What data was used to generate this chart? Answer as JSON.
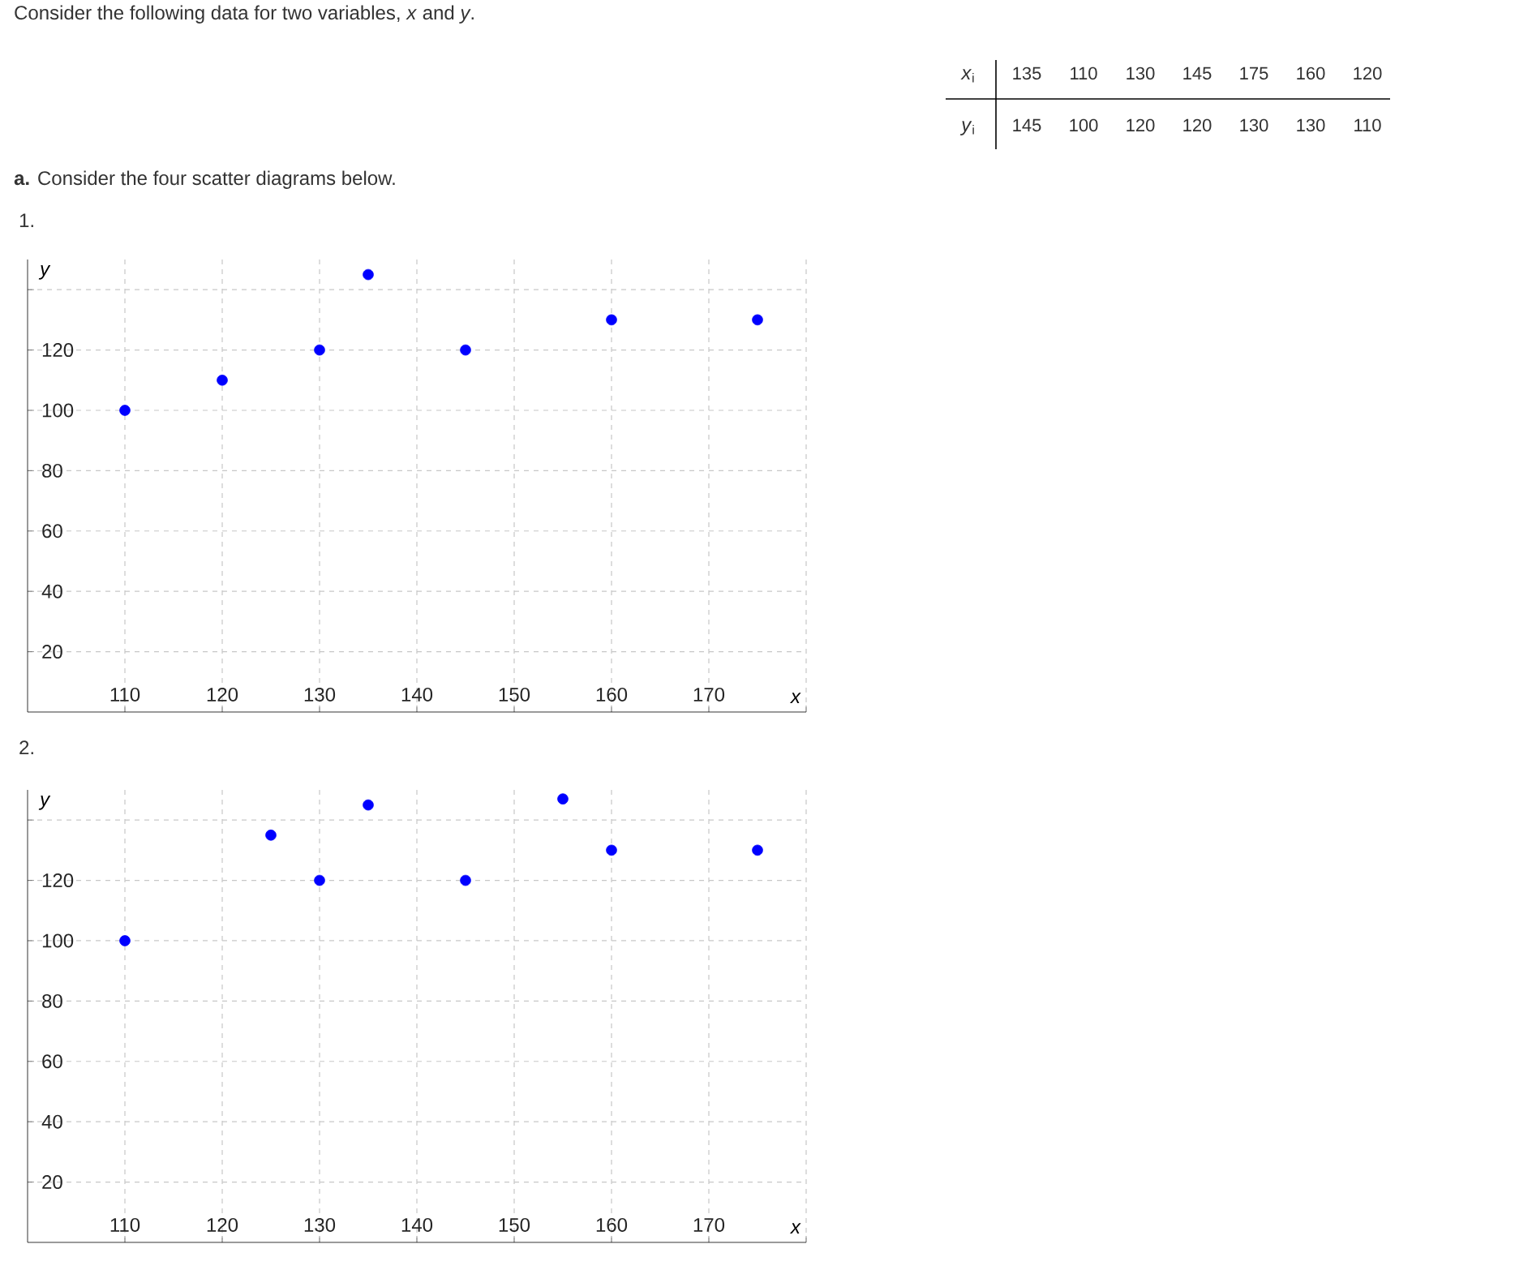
{
  "chart_data": [
    {
      "type": "other",
      "annotations": [
        "Consider the following data for two variables, *x* and *y*.",
        "*x*$_{i}$",
        "135",
        "110",
        "130",
        "145",
        "175",
        "160",
        "120",
        "*y*$_{i}$",
        "145",
        "100",
        "120",
        "120",
        "130",
        "130",
        "110",
        "**a.** Consider the four scatter diagrams below."
      ]
    },
    {
      "type": "scatter",
      "title": "1.",
      "x": [
        110,
        120,
        130,
        135,
        145,
        160,
        175
      ],
      "series": [
        {
          "color": "#0000ff",
          "values": [
            100,
            110,
            120,
            145,
            120,
            130,
            130
          ]
        }
      ],
      "marker": "circle",
      "xlabel": "x",
      "ylabel": "y",
      "xlim": [
        100,
        180
      ],
      "ylim": [
        0,
        150
      ],
      "xticks": [
        110,
        120,
        130,
        140,
        150,
        160,
        170,
        {
          "value": 180,
          "label": null
        }
      ],
      "yticks": [
        20,
        40,
        60,
        80,
        100,
        120,
        {
          "value": 140,
          "label": null
        }
      ],
      "grid": true
    },
    {
      "type": "scatter",
      "title": "2.",
      "x": [
        110,
        125,
        130,
        135,
        145,
        155,
        160,
        175
      ],
      "series": [
        {
          "color": "#0000ff",
          "values": [
            100,
            135,
            120,
            145,
            120,
            147,
            130,
            130
          ]
        }
      ],
      "marker": "circle",
      "xlabel": "x",
      "ylabel": "y",
      "xlim": [
        100,
        180
      ],
      "ylim": [
        0,
        150
      ],
      "xticks": [
        110,
        120,
        130,
        140,
        150,
        160,
        170,
        {
          "value": 180,
          "label": null
        }
      ],
      "yticks": [
        20,
        40,
        60,
        80,
        100,
        120,
        {
          "value": 140,
          "label": null
        }
      ],
      "grid": true
    }
  ]
}
